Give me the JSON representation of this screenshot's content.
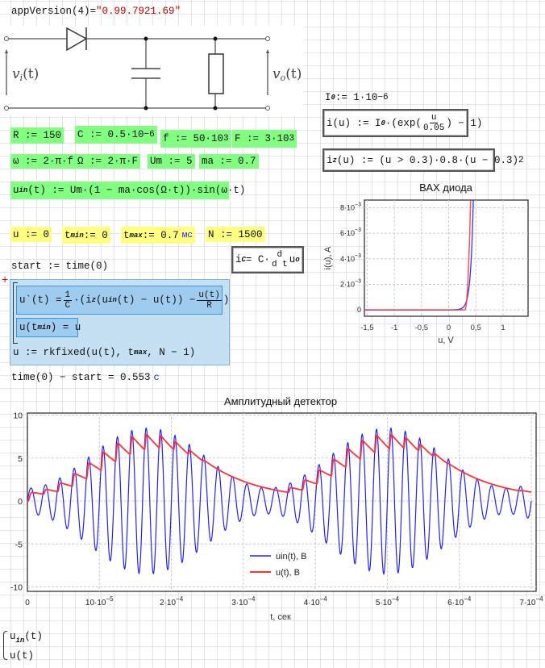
{
  "worksheet": {
    "app_version": {
      "lhs": "appVersion(4)",
      "eq": "=",
      "value": "\"0.99.7921.69\""
    },
    "circuit": {
      "input_label": "v",
      "input_sub": "i",
      "input_arg": "(t)",
      "output_label": "v",
      "output_sub": "o",
      "output_arg": "(t)"
    },
    "R": "R := 150",
    "C": {
      "text": "C := 0.5·10",
      "exp": "−6"
    },
    "f": {
      "text": "f := 50·10",
      "exp": "3"
    },
    "F": {
      "text": "F := 3·10",
      "exp": "3"
    },
    "omega": "ω := 2·π·f",
    "Omega": "Ω := 2·π·F",
    "Um": "Um := 5",
    "ma": "ma := 0.7",
    "uin_def": {
      "name": "u",
      "sub": "in",
      "body": "(t) := Um·(1 − ma·cos(Ω·t))·sin(ω·t)"
    },
    "u0": "u := 0",
    "tmin": {
      "name": "t",
      "sub": "min",
      "body": " := 0"
    },
    "tmax": {
      "name": "t",
      "sub": "max",
      "body": " := 0.7",
      "unit": "мс"
    },
    "N": "N := 1500",
    "ic": {
      "name": "i",
      "sub": "C",
      "body": " = C·",
      "num": "d",
      "den": "d t",
      "tail": "u",
      "tail_sub": "o"
    },
    "start": "start := time(0)",
    "solve_block": {
      "ode_lhs": "u`(t) = ",
      "frac_num": "1",
      "frac_den": "C",
      "ode_mid1": "·(i",
      "ode_sub": "z",
      "ode_mid2": "(u",
      "ode_sub2": "in",
      "ode_mid3": "(t) − u(t)) − ",
      "ode_num": "u(t)",
      "ode_den": "R",
      "ode_end": ")",
      "init_a": "u(t",
      "init_sub": "min",
      "init_b": ") = u",
      "rk_a": "u := rkfixed(u(t), t",
      "rk_sub": "max",
      "rk_b": ", N − 1)"
    },
    "elapsed": {
      "lhs": "time(0) − start = 0.553",
      "unit": "c"
    },
    "I0": {
      "text": "I",
      "sub": "0",
      "body": " := 1·10",
      "exp": "−6"
    },
    "i_def": {
      "a": "i(u) := I",
      "sub": "0",
      "b": "·(exp(",
      "num": "u",
      "den": "0.05",
      "c": ") − 1)"
    },
    "iz_def": {
      "a": "i",
      "sub": "z",
      "b": "(u) := (u > 0.3)·0.8·(u − 0.3)",
      "exp": "2"
    },
    "plot_vars": [
      "u",
      "(t)",
      "u(t)"
    ],
    "plot_vars_sub": "in"
  },
  "chart_data": [
    {
      "type": "line",
      "title": "ВАХ диода",
      "xlabel": "u, V",
      "ylabel": "i(u), A",
      "xlim": [
        -1.55,
        1.46
      ],
      "ylim": [
        -0.0005,
        0.0086
      ],
      "grid": true,
      "x_ticks": [
        {
          "v": -1.5,
          "label": "-1,5"
        },
        {
          "v": -1,
          "label": "-1"
        },
        {
          "v": -0.5,
          "label": "-0,5"
        },
        {
          "v": 0,
          "label": "0"
        },
        {
          "v": 0.5,
          "label": "0,5"
        },
        {
          "v": 1,
          "label": "1"
        }
      ],
      "y_ticks": [
        {
          "v": 0,
          "m": "0",
          "e": ""
        },
        {
          "v": 0.002,
          "m": "2·10",
          "e": "−3"
        },
        {
          "v": 0.004,
          "m": "4·10",
          "e": "−3"
        },
        {
          "v": 0.006,
          "m": "6·10",
          "e": "−3"
        },
        {
          "v": 0.008,
          "m": "8·10",
          "e": "−3"
        }
      ],
      "series": [
        {
          "expr": "i(u) = I0·(exp(u/0.05) − 1)",
          "I0": 1e-06,
          "Vt": 0.05,
          "color": "#3333ff"
        },
        {
          "expr": "iz(u) = (u > 0.3)·0.8·(u − 0.3)^2",
          "threshold": 0.3,
          "k": 0.8,
          "color": "#ff3333"
        }
      ]
    },
    {
      "type": "line",
      "title": "Амплитудный детектор",
      "xlabel": "t, сек",
      "ylabel": "",
      "xlim": [
        0,
        0.0007
      ],
      "ylim": [
        -10.3,
        10.6
      ],
      "grid": true,
      "legend": "bottom-center",
      "x_ticks": [
        {
          "v": 0,
          "m": "0",
          "e": ""
        },
        {
          "v": 0.0001,
          "m": "10·10",
          "e": "−5"
        },
        {
          "v": 0.0002,
          "m": "2·10",
          "e": "−4"
        },
        {
          "v": 0.0003,
          "m": "3·10",
          "e": "−4"
        },
        {
          "v": 0.0004,
          "m": "4·10",
          "e": "−4"
        },
        {
          "v": 0.0005,
          "m": "5·10",
          "e": "−4"
        },
        {
          "v": 0.0006,
          "m": "6·10",
          "e": "−4"
        },
        {
          "v": 0.0007,
          "m": "7·10",
          "e": "−4"
        }
      ],
      "y_ticks": [
        10,
        5,
        0,
        -5,
        -10
      ],
      "model": {
        "Um": 5,
        "ma": 0.7,
        "f": 50000,
        "F": 3000,
        "R": 150,
        "C": 5e-07,
        "tmin": 0,
        "tmax": 0.0007,
        "N": 1500,
        "u0": 0
      },
      "series": [
        {
          "name": "uin(t), В",
          "color": "#2222ff"
        },
        {
          "name": "u(t), В",
          "color": "#ff3333"
        }
      ]
    }
  ]
}
